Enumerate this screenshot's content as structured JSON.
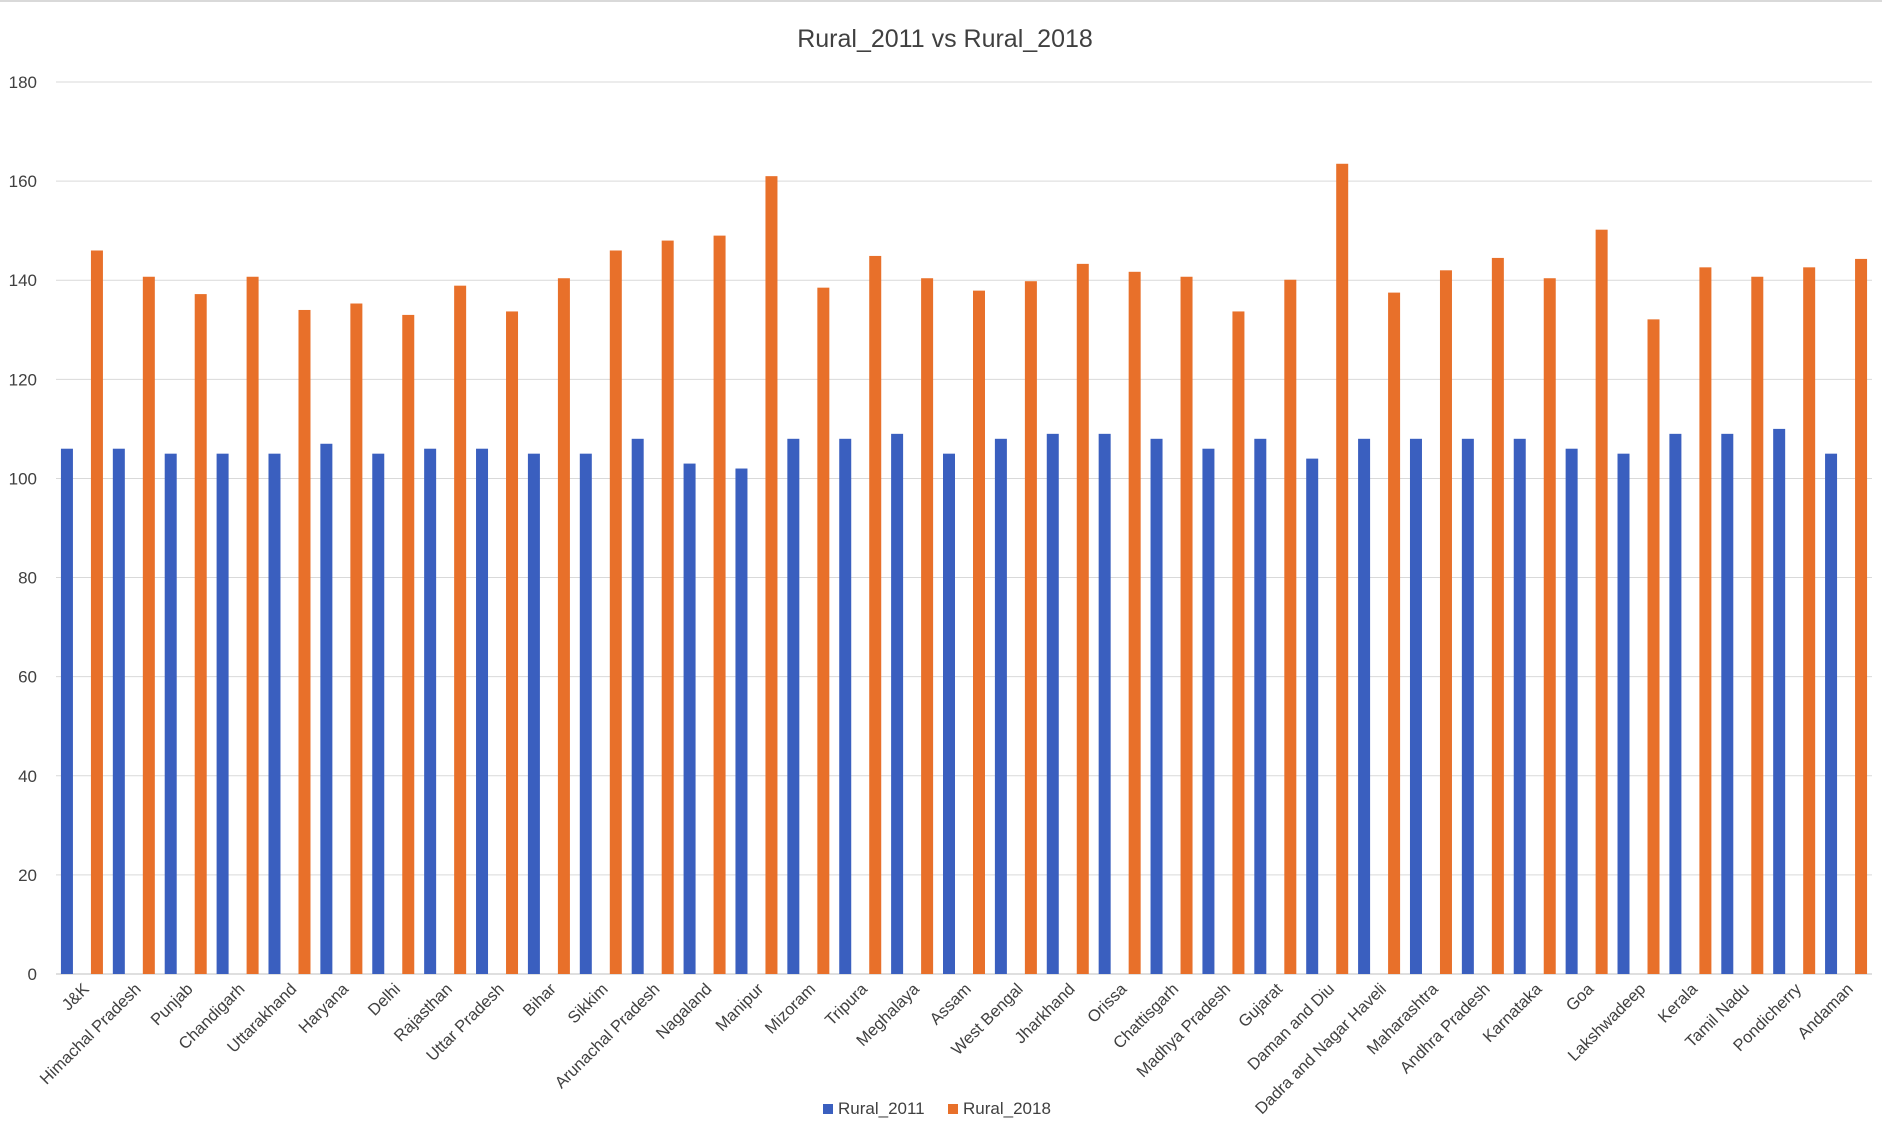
{
  "chart_data": {
    "type": "bar",
    "title": "Rural_2011 vs Rural_2018",
    "xlabel": "",
    "ylabel": "",
    "ylim": [
      0,
      180
    ],
    "yticks": [
      0,
      20,
      40,
      60,
      80,
      100,
      120,
      140,
      160,
      180
    ],
    "grid": true,
    "legend_position": "bottom",
    "categories": [
      "J&K",
      "Himachal Pradesh",
      "Punjab",
      "Chandigarh",
      "Uttarakhand",
      "Haryana",
      "Delhi",
      "Rajasthan",
      "Uttar Pradesh",
      "Bihar",
      "Sikkim",
      "Arunachal Pradesh",
      "Nagaland",
      "Manipur",
      "Mizoram",
      "Tripura",
      "Meghalaya",
      "Assam",
      "West Bengal",
      "Jharkhand",
      "Orissa",
      "Chattisgarh",
      "Madhya Pradesh",
      "Gujarat",
      "Daman and Diu",
      "Dadra and Nagar Haveli",
      "Maharashtra",
      "Andhra Pradesh",
      "Karnataka",
      "Goa",
      "Lakshwadeep",
      "Kerala",
      "Tamil Nadu",
      "Pondicherry",
      "Andaman"
    ],
    "series": [
      {
        "name": "Rural_2011",
        "color": "#3a5fbf",
        "values": [
          106,
          106,
          105,
          105,
          105,
          107,
          105,
          106,
          106,
          105,
          105,
          108,
          103,
          102,
          108,
          108,
          109,
          105,
          108,
          109,
          109,
          108,
          106,
          108,
          104,
          108,
          108,
          108,
          108,
          106,
          105,
          109,
          109,
          110,
          105
        ]
      },
      {
        "name": "Rural_2018",
        "color": "#e8702a",
        "values": [
          146,
          140.7,
          137.2,
          140.7,
          134,
          135.3,
          133,
          138.9,
          133.7,
          140.4,
          146,
          148,
          149,
          161,
          138.5,
          144.9,
          140.4,
          137.9,
          139.8,
          143.3,
          141.7,
          140.7,
          133.7,
          140.1,
          163.5,
          137.5,
          142,
          144.5,
          140.4,
          150.2,
          132.1,
          142.6,
          140.7,
          142.6,
          144.3
        ]
      }
    ]
  }
}
